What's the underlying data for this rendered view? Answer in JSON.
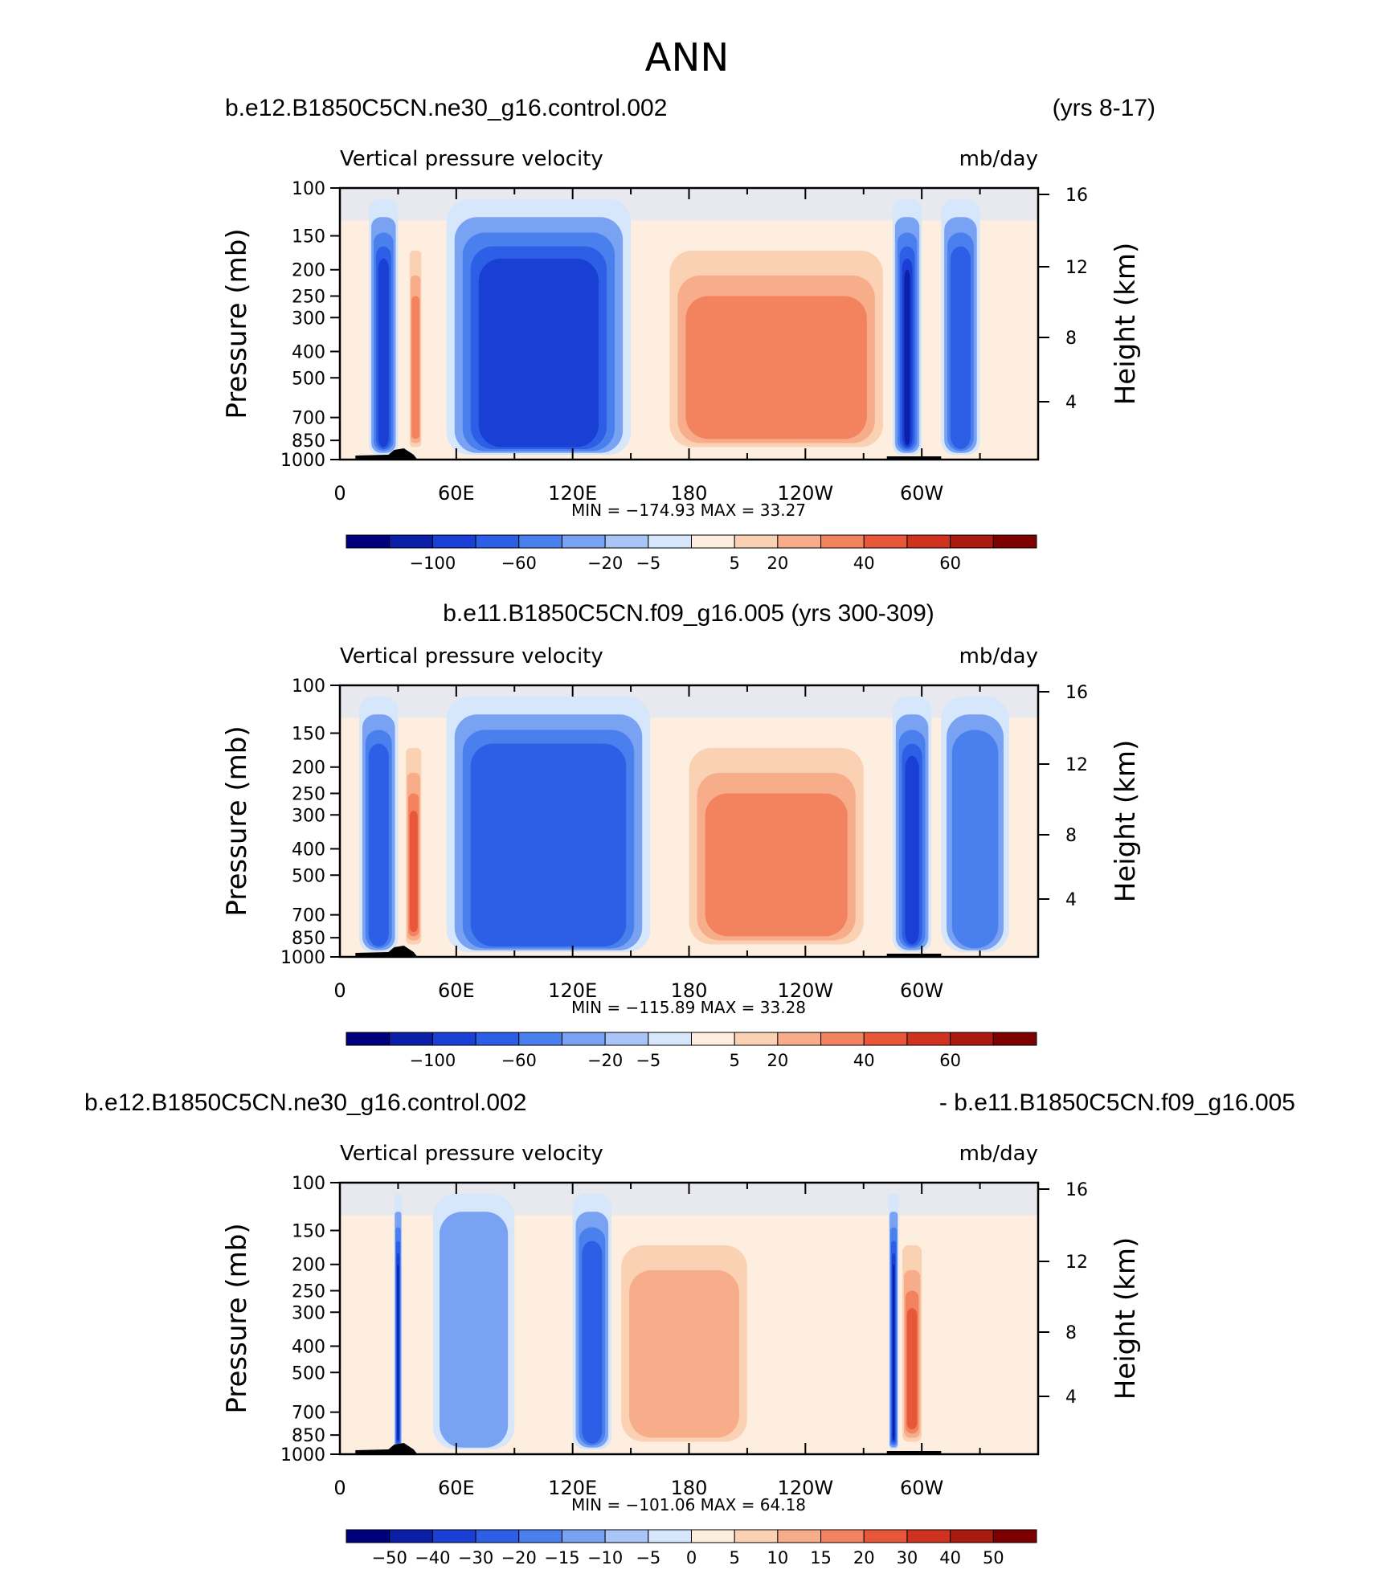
{
  "page_title": "ANN",
  "colors": {
    "scale": [
      "#00007f",
      "#0b1fa8",
      "#1a3fd4",
      "#2c5ee6",
      "#4a7fee",
      "#7aa2f2",
      "#a9c4f7",
      "#d6e6fb",
      "#fdeedf",
      "#fbd1b4",
      "#f8ad8a",
      "#f3835f",
      "#e8573a",
      "#cf3320",
      "#ab1a10",
      "#7f0000"
    ]
  },
  "chart_data": [
    {
      "type": "heatmap",
      "name": "panel-1",
      "title_left": "b.e12.B1850C5CN.ne30_g16.control.002",
      "title_right": "(yrs 8-17)",
      "variable_label": "Vertical pressure velocity",
      "units_label": "mb/day",
      "ylabel": "Pressure (mb)",
      "ylabel_right": "Height (km)",
      "xticks": [
        "0",
        "60E",
        "120E",
        "180",
        "120W",
        "60W"
      ],
      "yticks": [
        "100",
        "150",
        "200",
        "250",
        "300",
        "400",
        "500",
        "700",
        "850",
        "1000"
      ],
      "yticks_right": [
        "16",
        "12",
        "8",
        "4"
      ],
      "stats": "MIN = −174.93   MAX =   33.27",
      "colorbar_labels": [
        "−100",
        "−60",
        "−20",
        "−5",
        "5",
        "20",
        "40",
        "60"
      ],
      "ylim": [
        1000,
        100
      ],
      "features": [
        {
          "lon": [
            15,
            30
          ],
          "level": "ascent",
          "strength": 4
        },
        {
          "lon": [
            36,
            42
          ],
          "level": "descent",
          "strength": 2
        },
        {
          "lon": [
            55,
            150
          ],
          "level": "ascent",
          "strength": 4
        },
        {
          "lon": [
            170,
            280
          ],
          "level": "descent",
          "strength": 2
        },
        {
          "lon": [
            285,
            300
          ],
          "level": "ascent",
          "strength": 5
        },
        {
          "lon": [
            310,
            330
          ],
          "level": "ascent",
          "strength": 3
        }
      ]
    },
    {
      "type": "heatmap",
      "name": "panel-2",
      "title_center": "b.e11.B1850C5CN.f09_g16.005 (yrs 300-309)",
      "variable_label": "Vertical pressure velocity",
      "units_label": "mb/day",
      "ylabel": "Pressure (mb)",
      "ylabel_right": "Height (km)",
      "xticks": [
        "0",
        "60E",
        "120E",
        "180",
        "120W",
        "60W"
      ],
      "yticks": [
        "100",
        "150",
        "200",
        "250",
        "300",
        "400",
        "500",
        "700",
        "850",
        "1000"
      ],
      "yticks_right": [
        "16",
        "12",
        "8",
        "4"
      ],
      "stats": "MIN = −115.89   MAX =   33.28",
      "colorbar_labels": [
        "−100",
        "−60",
        "−20",
        "−5",
        "5",
        "20",
        "40",
        "60"
      ],
      "ylim": [
        1000,
        100
      ],
      "features": [
        {
          "lon": [
            10,
            30
          ],
          "level": "ascent",
          "strength": 3
        },
        {
          "lon": [
            34,
            42
          ],
          "level": "descent",
          "strength": 3
        },
        {
          "lon": [
            55,
            160
          ],
          "level": "ascent",
          "strength": 3
        },
        {
          "lon": [
            180,
            270
          ],
          "level": "descent",
          "strength": 2
        },
        {
          "lon": [
            285,
            305
          ],
          "level": "ascent",
          "strength": 4
        },
        {
          "lon": [
            310,
            345
          ],
          "level": "ascent",
          "strength": 2
        }
      ]
    },
    {
      "type": "heatmap",
      "name": "panel-3",
      "title_left": "b.e12.B1850C5CN.ne30_g16.control.002",
      "title_right": "- b.e11.B1850C5CN.f09_g16.005",
      "variable_label": "Vertical pressure velocity",
      "units_label": "mb/day",
      "ylabel": "Pressure (mb)",
      "ylabel_right": "Height (km)",
      "xticks": [
        "0",
        "60E",
        "120E",
        "180",
        "120W",
        "60W"
      ],
      "yticks": [
        "100",
        "150",
        "200",
        "250",
        "300",
        "400",
        "500",
        "700",
        "850",
        "1000"
      ],
      "yticks_right": [
        "16",
        "12",
        "8",
        "4"
      ],
      "stats": "MIN = −101.06   MAX =   64.18",
      "colorbar_labels": [
        "−50",
        "−40",
        "−30",
        "−20",
        "−15",
        "−10",
        "−5",
        "0",
        "5",
        "10",
        "15",
        "20",
        "30",
        "40",
        "50"
      ],
      "ylim": [
        1000,
        100
      ],
      "features": [
        {
          "lon": [
            28,
            32
          ],
          "level": "ascent",
          "strength": 5
        },
        {
          "lon": [
            48,
            90
          ],
          "level": "ascent",
          "strength": 1
        },
        {
          "lon": [
            120,
            140
          ],
          "level": "ascent",
          "strength": 3
        },
        {
          "lon": [
            145,
            210
          ],
          "level": "descent",
          "strength": 1
        },
        {
          "lon": [
            283,
            288
          ],
          "level": "ascent",
          "strength": 5
        },
        {
          "lon": [
            290,
            300
          ],
          "level": "descent",
          "strength": 3
        }
      ]
    }
  ]
}
